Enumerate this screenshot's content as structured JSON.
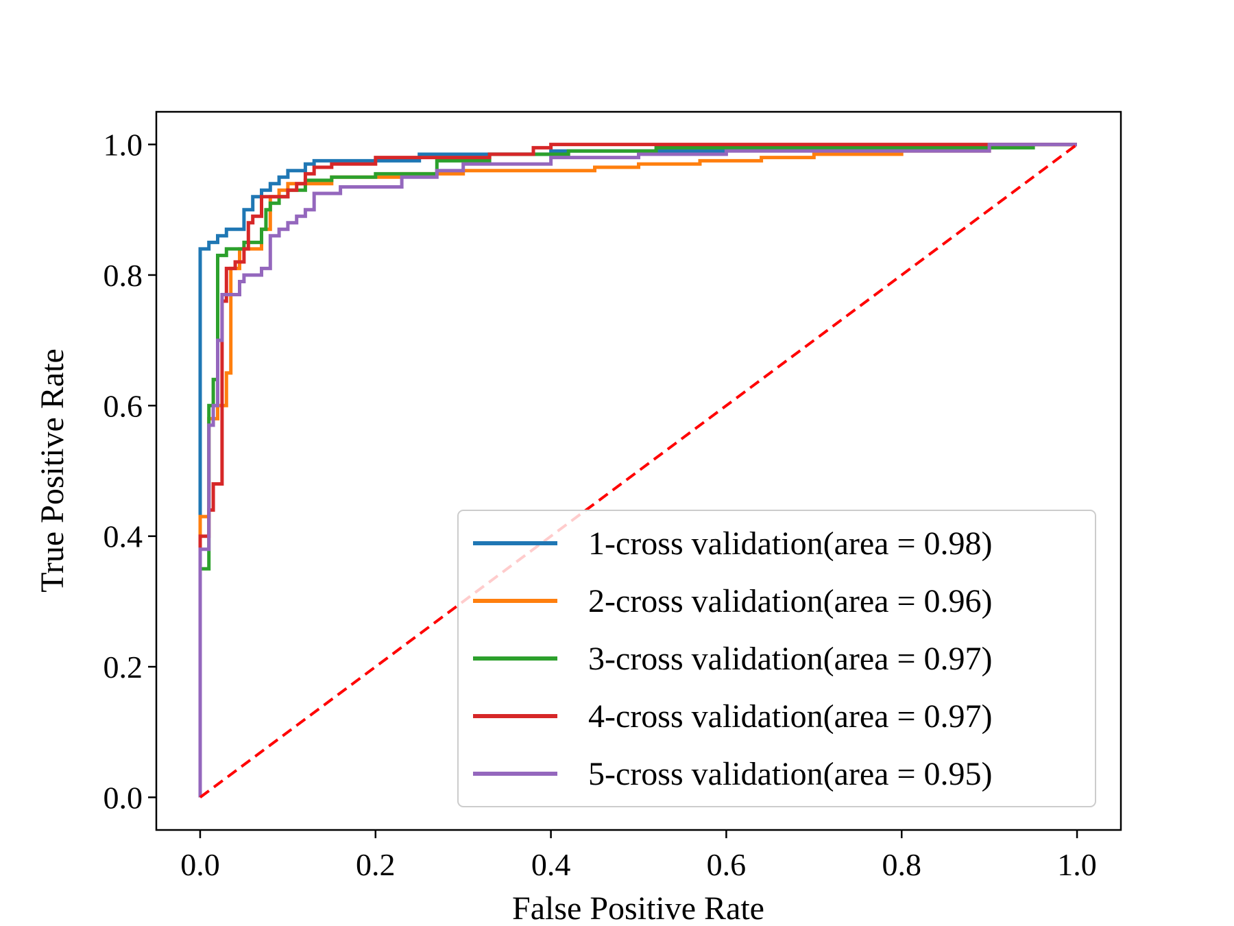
{
  "chart_data": {
    "type": "line",
    "title": "",
    "xlabel": "False Positive Rate",
    "ylabel": "True Positive Rate",
    "xlim": [
      -0.05,
      1.05
    ],
    "ylim": [
      -0.05,
      1.05
    ],
    "xticks": [
      "0.0",
      "0.2",
      "0.4",
      "0.6",
      "0.8",
      "1.0"
    ],
    "yticks": [
      "0.0",
      "0.2",
      "0.4",
      "0.6",
      "0.8",
      "1.0"
    ],
    "grid": false,
    "legend_position": "lower-right",
    "series": [
      {
        "name": "1-cross validation(area = 0.98)",
        "color": "#1f77b4",
        "points": [
          [
            0,
            0
          ],
          [
            0,
            0.84
          ],
          [
            0.01,
            0.84
          ],
          [
            0.01,
            0.85
          ],
          [
            0.02,
            0.85
          ],
          [
            0.02,
            0.86
          ],
          [
            0.03,
            0.86
          ],
          [
            0.03,
            0.87
          ],
          [
            0.05,
            0.87
          ],
          [
            0.05,
            0.9
          ],
          [
            0.06,
            0.9
          ],
          [
            0.06,
            0.92
          ],
          [
            0.07,
            0.92
          ],
          [
            0.07,
            0.93
          ],
          [
            0.08,
            0.93
          ],
          [
            0.08,
            0.94
          ],
          [
            0.09,
            0.94
          ],
          [
            0.09,
            0.95
          ],
          [
            0.1,
            0.95
          ],
          [
            0.1,
            0.96
          ],
          [
            0.12,
            0.96
          ],
          [
            0.12,
            0.97
          ],
          [
            0.13,
            0.97
          ],
          [
            0.13,
            0.975
          ],
          [
            0.25,
            0.975
          ],
          [
            0.25,
            0.985
          ],
          [
            0.4,
            0.985
          ],
          [
            0.4,
            0.99
          ],
          [
            0.6,
            0.99
          ],
          [
            0.6,
            0.995
          ],
          [
            0.9,
            0.995
          ],
          [
            0.9,
            1
          ],
          [
            1,
            1
          ]
        ]
      },
      {
        "name": "2-cross validation(area = 0.96)",
        "color": "#ff7f0e",
        "points": [
          [
            0,
            0
          ],
          [
            0,
            0.43
          ],
          [
            0.01,
            0.43
          ],
          [
            0.01,
            0.58
          ],
          [
            0.02,
            0.58
          ],
          [
            0.02,
            0.6
          ],
          [
            0.03,
            0.6
          ],
          [
            0.03,
            0.65
          ],
          [
            0.035,
            0.65
          ],
          [
            0.035,
            0.81
          ],
          [
            0.045,
            0.81
          ],
          [
            0.045,
            0.84
          ],
          [
            0.07,
            0.84
          ],
          [
            0.07,
            0.87
          ],
          [
            0.08,
            0.87
          ],
          [
            0.08,
            0.92
          ],
          [
            0.09,
            0.92
          ],
          [
            0.09,
            0.93
          ],
          [
            0.1,
            0.93
          ],
          [
            0.1,
            0.94
          ],
          [
            0.15,
            0.94
          ],
          [
            0.15,
            0.95
          ],
          [
            0.23,
            0.95
          ],
          [
            0.23,
            0.955
          ],
          [
            0.3,
            0.955
          ],
          [
            0.3,
            0.96
          ],
          [
            0.45,
            0.96
          ],
          [
            0.45,
            0.965
          ],
          [
            0.5,
            0.965
          ],
          [
            0.5,
            0.97
          ],
          [
            0.57,
            0.97
          ],
          [
            0.57,
            0.975
          ],
          [
            0.64,
            0.975
          ],
          [
            0.64,
            0.98
          ],
          [
            0.7,
            0.98
          ],
          [
            0.7,
            0.985
          ],
          [
            0.8,
            0.985
          ],
          [
            0.8,
            0.99
          ],
          [
            0.9,
            0.99
          ],
          [
            0.9,
            1
          ],
          [
            1,
            1
          ]
        ]
      },
      {
        "name": "3-cross validation(area = 0.97)",
        "color": "#2ca02c",
        "points": [
          [
            0,
            0
          ],
          [
            0,
            0.35
          ],
          [
            0.01,
            0.35
          ],
          [
            0.01,
            0.6
          ],
          [
            0.015,
            0.6
          ],
          [
            0.015,
            0.64
          ],
          [
            0.02,
            0.64
          ],
          [
            0.02,
            0.83
          ],
          [
            0.03,
            0.83
          ],
          [
            0.03,
            0.84
          ],
          [
            0.05,
            0.84
          ],
          [
            0.05,
            0.85
          ],
          [
            0.07,
            0.85
          ],
          [
            0.07,
            0.87
          ],
          [
            0.075,
            0.87
          ],
          [
            0.075,
            0.9
          ],
          [
            0.08,
            0.9
          ],
          [
            0.08,
            0.91
          ],
          [
            0.09,
            0.91
          ],
          [
            0.09,
            0.92
          ],
          [
            0.1,
            0.92
          ],
          [
            0.1,
            0.93
          ],
          [
            0.12,
            0.93
          ],
          [
            0.12,
            0.945
          ],
          [
            0.15,
            0.945
          ],
          [
            0.15,
            0.95
          ],
          [
            0.2,
            0.95
          ],
          [
            0.2,
            0.955
          ],
          [
            0.27,
            0.955
          ],
          [
            0.27,
            0.975
          ],
          [
            0.33,
            0.975
          ],
          [
            0.33,
            0.985
          ],
          [
            0.42,
            0.985
          ],
          [
            0.42,
            0.99
          ],
          [
            0.52,
            0.99
          ],
          [
            0.52,
            0.995
          ],
          [
            0.95,
            0.995
          ],
          [
            0.95,
            1
          ],
          [
            1,
            1
          ]
        ]
      },
      {
        "name": "4-cross validation(area = 0.97)",
        "color": "#d62728",
        "points": [
          [
            0,
            0
          ],
          [
            0,
            0.4
          ],
          [
            0.01,
            0.4
          ],
          [
            0.01,
            0.44
          ],
          [
            0.015,
            0.44
          ],
          [
            0.015,
            0.48
          ],
          [
            0.025,
            0.48
          ],
          [
            0.025,
            0.76
          ],
          [
            0.03,
            0.76
          ],
          [
            0.03,
            0.81
          ],
          [
            0.04,
            0.81
          ],
          [
            0.04,
            0.82
          ],
          [
            0.05,
            0.82
          ],
          [
            0.05,
            0.84
          ],
          [
            0.055,
            0.84
          ],
          [
            0.055,
            0.88
          ],
          [
            0.06,
            0.88
          ],
          [
            0.06,
            0.89
          ],
          [
            0.07,
            0.89
          ],
          [
            0.07,
            0.92
          ],
          [
            0.1,
            0.92
          ],
          [
            0.1,
            0.93
          ],
          [
            0.11,
            0.93
          ],
          [
            0.11,
            0.94
          ],
          [
            0.12,
            0.94
          ],
          [
            0.12,
            0.955
          ],
          [
            0.13,
            0.955
          ],
          [
            0.13,
            0.965
          ],
          [
            0.15,
            0.965
          ],
          [
            0.15,
            0.97
          ],
          [
            0.2,
            0.97
          ],
          [
            0.2,
            0.98
          ],
          [
            0.33,
            0.98
          ],
          [
            0.33,
            0.985
          ],
          [
            0.38,
            0.985
          ],
          [
            0.38,
            0.995
          ],
          [
            0.4,
            0.995
          ],
          [
            0.4,
            1
          ],
          [
            1,
            1
          ]
        ]
      },
      {
        "name": "5-cross validation(area = 0.95)",
        "color": "#9467bd",
        "points": [
          [
            0,
            0
          ],
          [
            0,
            0.38
          ],
          [
            0.01,
            0.38
          ],
          [
            0.01,
            0.57
          ],
          [
            0.015,
            0.57
          ],
          [
            0.015,
            0.6
          ],
          [
            0.02,
            0.6
          ],
          [
            0.02,
            0.7
          ],
          [
            0.025,
            0.7
          ],
          [
            0.025,
            0.77
          ],
          [
            0.045,
            0.77
          ],
          [
            0.045,
            0.79
          ],
          [
            0.05,
            0.79
          ],
          [
            0.05,
            0.8
          ],
          [
            0.07,
            0.8
          ],
          [
            0.07,
            0.81
          ],
          [
            0.08,
            0.81
          ],
          [
            0.08,
            0.86
          ],
          [
            0.09,
            0.86
          ],
          [
            0.09,
            0.87
          ],
          [
            0.1,
            0.87
          ],
          [
            0.1,
            0.88
          ],
          [
            0.11,
            0.88
          ],
          [
            0.11,
            0.89
          ],
          [
            0.12,
            0.89
          ],
          [
            0.12,
            0.9
          ],
          [
            0.13,
            0.9
          ],
          [
            0.13,
            0.925
          ],
          [
            0.16,
            0.925
          ],
          [
            0.16,
            0.935
          ],
          [
            0.23,
            0.935
          ],
          [
            0.23,
            0.95
          ],
          [
            0.27,
            0.95
          ],
          [
            0.27,
            0.96
          ],
          [
            0.3,
            0.96
          ],
          [
            0.3,
            0.97
          ],
          [
            0.4,
            0.97
          ],
          [
            0.4,
            0.98
          ],
          [
            0.5,
            0.98
          ],
          [
            0.5,
            0.985
          ],
          [
            0.6,
            0.985
          ],
          [
            0.6,
            0.99
          ],
          [
            0.9,
            0.99
          ],
          [
            0.9,
            1
          ],
          [
            1,
            1
          ]
        ]
      }
    ],
    "reference_line": {
      "color": "#ff0000",
      "points": [
        [
          0,
          0
        ],
        [
          1,
          1
        ]
      ]
    }
  }
}
